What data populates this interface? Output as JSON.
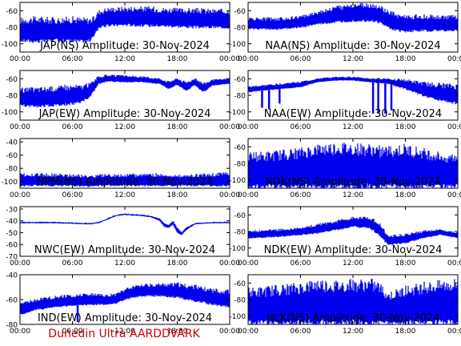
{
  "credit": "Dunedin Ultra AARDDVARK",
  "colors": {
    "trace": "#0000ee",
    "axes": "#000000",
    "credit": "#cc0000"
  },
  "chart_data": [
    {
      "type": "area",
      "title": "JAP(NS) Amplitude: 30-Nov-2024",
      "x_ticks": [
        "00:00",
        "06:00",
        "12:00",
        "18:00",
        "00:00"
      ],
      "x_hours": [
        0,
        24
      ],
      "y_ticks": [
        -60,
        -80,
        -100
      ],
      "ylim": [
        -110,
        -50
      ],
      "x": [
        0,
        2,
        4,
        6,
        7,
        8,
        8.5,
        9,
        10,
        12,
        14,
        15,
        16,
        18,
        20,
        22,
        24
      ],
      "upper": [
        -72,
        -71,
        -72,
        -71,
        -72,
        -72,
        -70,
        -62,
        -59,
        -58,
        -58,
        -58,
        -59,
        -60,
        -60,
        -61,
        -61
      ],
      "lower": [
        -96,
        -97,
        -96,
        -96,
        -97,
        -96,
        -90,
        -80,
        -78,
        -77,
        -78,
        -78,
        -78,
        -79,
        -80,
        -80,
        -80
      ]
    },
    {
      "type": "area",
      "title": "NAA(NS) Amplitude: 30-Nov-2024",
      "x_ticks": [
        "00:00",
        "06:00",
        "12:00",
        "18:00",
        "00:00"
      ],
      "x_hours": [
        0,
        24
      ],
      "y_ticks": [
        -60,
        -80,
        -100
      ],
      "ylim": [
        -110,
        -50
      ],
      "x": [
        0,
        2,
        4,
        6,
        8,
        10,
        12,
        14,
        15,
        16,
        17,
        18,
        20,
        22,
        24
      ],
      "upper": [
        -70,
        -70,
        -70,
        -68,
        -62,
        -57,
        -54,
        -54,
        -56,
        -62,
        -66,
        -68,
        -67,
        -68,
        -68
      ],
      "lower": [
        -82,
        -82,
        -82,
        -80,
        -76,
        -74,
        -72,
        -72,
        -74,
        -80,
        -84,
        -85,
        -84,
        -84,
        -84
      ]
    },
    {
      "type": "area",
      "title": "JAP(EW) Amplitude: 30-Nov-2024",
      "x_ticks": [
        "00:00",
        "06:00",
        "12:00",
        "18:00",
        "00:00"
      ],
      "x_hours": [
        0,
        24
      ],
      "y_ticks": [
        -60,
        -80,
        -100
      ],
      "ylim": [
        -110,
        -50
      ],
      "x": [
        0,
        2,
        4,
        6,
        7,
        8,
        8.5,
        9,
        10,
        12,
        14,
        16,
        17,
        18,
        19,
        20,
        21,
        22,
        23,
        24
      ],
      "upper": [
        -74,
        -73,
        -72,
        -70,
        -70,
        -67,
        -62,
        -58,
        -56,
        -57,
        -58,
        -60,
        -64,
        -60,
        -65,
        -60,
        -66,
        -62,
        -61,
        -60
      ],
      "lower": [
        -92,
        -93,
        -92,
        -90,
        -88,
        -82,
        -74,
        -66,
        -63,
        -64,
        -64,
        -66,
        -72,
        -67,
        -74,
        -68,
        -76,
        -68,
        -67,
        -66
      ]
    },
    {
      "type": "area",
      "title": "NAA(EW) Amplitude: 30-Nov-2024",
      "x_ticks": [
        "00:00",
        "06:00",
        "12:00",
        "18:00",
        "00:00"
      ],
      "x_hours": [
        0,
        24
      ],
      "y_ticks": [
        -60,
        -80,
        -100
      ],
      "ylim": [
        -110,
        -50
      ],
      "x": [
        0,
        2,
        4,
        6,
        8,
        10,
        12,
        14,
        16,
        18,
        20,
        22,
        24
      ],
      "upper": [
        -70,
        -68,
        -66,
        -64,
        -60,
        -58,
        -58,
        -60,
        -60,
        -62,
        -66,
        -68,
        -70
      ],
      "lower": [
        -76,
        -74,
        -72,
        -70,
        -64,
        -62,
        -62,
        -64,
        -66,
        -72,
        -80,
        -86,
        -90
      ],
      "dips": [
        [
          1.6,
          -95
        ],
        [
          2.4,
          -97
        ],
        [
          3.6,
          -90
        ],
        [
          14.3,
          -102
        ],
        [
          14.9,
          -102
        ],
        [
          15.7,
          -102
        ],
        [
          16.4,
          -98
        ]
      ]
    },
    {
      "type": "area",
      "title": "NPM(NS) Amplitude: 30-Nov-2024",
      "x_ticks": [
        "00:00",
        "06:00",
        "12:00",
        "18:00",
        "00:00"
      ],
      "x_hours": [
        0,
        24
      ],
      "y_ticks": [
        -40,
        -60,
        -80,
        -100
      ],
      "ylim": [
        -110,
        -35
      ],
      "x": [
        0,
        2,
        4,
        6,
        8,
        10,
        12,
        14,
        16,
        18,
        20,
        22,
        24
      ],
      "upper": [
        -90,
        -90,
        -90,
        -91,
        -92,
        -91,
        -91,
        -90,
        -90,
        -92,
        -91,
        -90,
        -88
      ],
      "lower": [
        -106,
        -106,
        -106,
        -106,
        -107,
        -106,
        -106,
        -106,
        -106,
        -106,
        -106,
        -106,
        -106
      ]
    },
    {
      "type": "area",
      "title": "NDK(NS) Amplitude: 30-Nov-2024",
      "x_ticks": [
        "00:00",
        "06:00",
        "12:00",
        "18:00",
        "00:00"
      ],
      "x_hours": [
        0,
        24
      ],
      "y_ticks": [
        -60,
        -80,
        -100
      ],
      "ylim": [
        -110,
        -50
      ],
      "x": [
        0,
        2,
        4,
        6,
        8,
        10,
        12,
        14,
        16,
        18,
        20,
        22,
        24
      ],
      "upper": [
        -72,
        -72,
        -70,
        -68,
        -64,
        -62,
        -63,
        -64,
        -66,
        -64,
        -68,
        -72,
        -74
      ],
      "lower": [
        -108,
        -108,
        -108,
        -108,
        -108,
        -108,
        -108,
        -108,
        -108,
        -108,
        -108,
        -108,
        -108
      ]
    },
    {
      "type": "line",
      "title": "NWC(EW) Amplitude: 30-Nov-2024",
      "x_ticks": [
        "00:00",
        "06:00",
        "12:00",
        "18:00",
        "00:00"
      ],
      "x_hours": [
        0,
        24
      ],
      "y_ticks": [
        -30,
        -40,
        -50,
        -60,
        -70
      ],
      "ylim": [
        -70,
        -28
      ],
      "x": [
        0,
        2,
        4,
        6,
        8,
        9,
        10,
        11,
        12,
        14,
        15,
        16,
        16.5,
        17,
        17.5,
        18,
        18.5,
        19,
        20,
        22,
        24
      ],
      "upper": [
        -41,
        -41,
        -41,
        -41.5,
        -42,
        -41,
        -38,
        -35,
        -34,
        -35,
        -36,
        -38,
        -42,
        -44,
        -40,
        -46,
        -50,
        -46,
        -42,
        -41,
        -41
      ],
      "lower": [
        -42,
        -42,
        -42,
        -42.5,
        -43,
        -42,
        -39,
        -36,
        -35,
        -36,
        -37,
        -40,
        -45,
        -46,
        -43,
        -50,
        -52,
        -48,
        -43,
        -42,
        -42
      ]
    },
    {
      "type": "area",
      "title": "NDK(EW) Amplitude: 30-Nov-2024",
      "x_ticks": [
        "00:00",
        "06:00",
        "12:00",
        "18:00",
        "00:00"
      ],
      "x_hours": [
        0,
        24
      ],
      "y_ticks": [
        -60,
        -80,
        -100
      ],
      "ylim": [
        -110,
        -50
      ],
      "x": [
        0,
        2,
        4,
        6,
        8,
        10,
        12,
        14,
        15,
        16,
        18,
        20,
        22,
        23,
        24
      ],
      "upper": [
        -80,
        -79,
        -78,
        -76,
        -72,
        -68,
        -64,
        -64,
        -70,
        -86,
        -84,
        -80,
        -78,
        -80,
        -82
      ],
      "lower": [
        -88,
        -87,
        -86,
        -84,
        -82,
        -78,
        -74,
        -76,
        -84,
        -96,
        -94,
        -88,
        -84,
        -86,
        -88
      ]
    },
    {
      "type": "area",
      "title": "IND(EW) Amplitude: 30-Nov-2024",
      "x_ticks": [
        "00:00",
        "06:00",
        "12:00",
        "18:00",
        "00:00"
      ],
      "x_hours": [
        0,
        24
      ],
      "y_ticks": [
        -40,
        -60,
        -80
      ],
      "ylim": [
        -80,
        -40
      ],
      "x": [
        0,
        2,
        4,
        6,
        8,
        10,
        11,
        12,
        13,
        14,
        16,
        18,
        20,
        22,
        24
      ],
      "upper": [
        -64,
        -60,
        -58,
        -57,
        -56,
        -57,
        -56,
        -52,
        -50,
        -49,
        -48,
        -48,
        -50,
        -53,
        -54
      ],
      "lower": [
        -72,
        -68,
        -66,
        -65,
        -64,
        -64,
        -63,
        -60,
        -58,
        -57,
        -57,
        -58,
        -61,
        -64,
        -66
      ],
      "dips": [
        [
          6.6,
          -78
        ]
      ]
    },
    {
      "type": "area",
      "title": "NLK(NS) Amplitude: 30-Nov-2024",
      "x_ticks": [
        "00:00",
        "06:00",
        "12:00",
        "18:00",
        "00:00"
      ],
      "x_hours": [
        0,
        24
      ],
      "y_ticks": [
        -60,
        -80,
        -100
      ],
      "ylim": [
        -110,
        -50
      ],
      "x": [
        0,
        2,
        4,
        6,
        8,
        10,
        12,
        14,
        15,
        16,
        18,
        20,
        22,
        24
      ],
      "upper": [
        -72,
        -70,
        -68,
        -66,
        -62,
        -64,
        -63,
        -62,
        -65,
        -76,
        -70,
        -66,
        -64,
        -62
      ],
      "lower": [
        -108,
        -108,
        -108,
        -108,
        -108,
        -108,
        -108,
        -108,
        -108,
        -108,
        -108,
        -108,
        -108,
        -108
      ]
    }
  ]
}
